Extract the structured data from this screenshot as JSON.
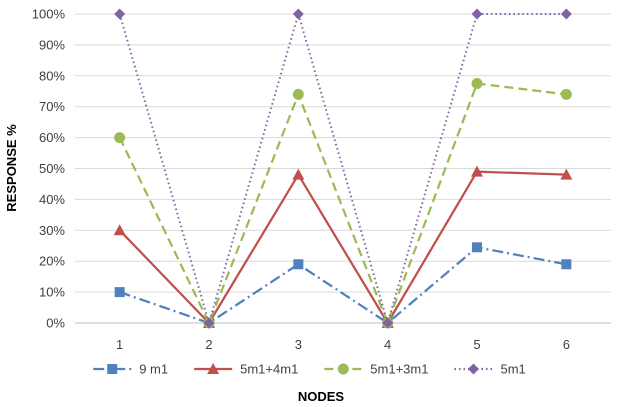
{
  "chart_data": {
    "type": "line",
    "title": "",
    "xlabel": "NODES",
    "ylabel": "RESPONSE %",
    "categories": [
      "1",
      "2",
      "3",
      "4",
      "5",
      "6"
    ],
    "ylim": [
      0,
      100
    ],
    "yticks": [
      "0%",
      "10%",
      "20%",
      "30%",
      "40%",
      "50%",
      "60%",
      "70%",
      "80%",
      "90%",
      "100%"
    ],
    "grid": true,
    "legend_position": "bottom",
    "series": [
      {
        "name": "9 m1",
        "values": [
          10,
          0,
          19,
          0,
          24.5,
          19
        ],
        "color": "#4F81BD",
        "marker": "square",
        "dash": "dash-dot"
      },
      {
        "name": "5m1+4m1",
        "values": [
          30,
          0,
          48,
          0,
          49,
          48
        ],
        "color": "#C0504D",
        "marker": "triangle",
        "dash": "solid"
      },
      {
        "name": "5m1+3m1",
        "values": [
          60,
          0,
          74,
          0,
          77.5,
          74
        ],
        "color": "#9BBB59",
        "marker": "circle",
        "dash": "dash"
      },
      {
        "name": "5m1",
        "values": [
          100,
          0,
          100,
          0,
          100,
          100
        ],
        "color": "#8064A2",
        "marker": "diamond",
        "dash": "dot"
      }
    ]
  }
}
